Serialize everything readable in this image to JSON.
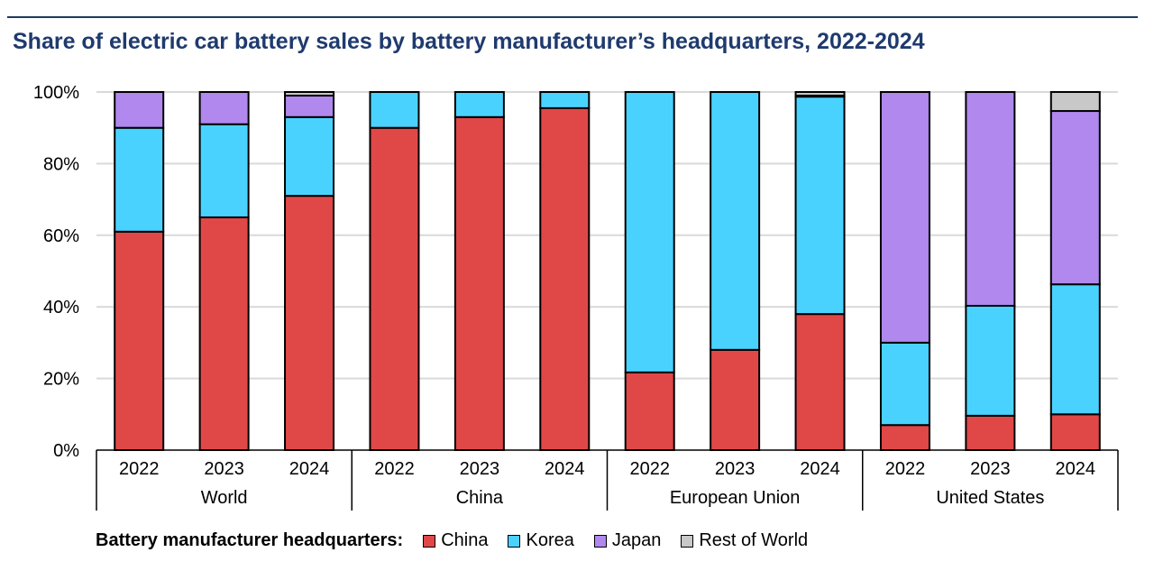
{
  "title": "Share of electric car battery sales by battery manufacturer’s headquarters, 2022-2024",
  "chart_data": {
    "type": "bar",
    "stacked": true,
    "title": "Share of electric car battery sales by battery manufacturer’s headquarters, 2022-2024",
    "groups": [
      "World",
      "China",
      "European Union",
      "United States"
    ],
    "categories": [
      "2022",
      "2023",
      "2024",
      "2022",
      "2023",
      "2024",
      "2022",
      "2023",
      "2024",
      "2022",
      "2023",
      "2024"
    ],
    "yticks": [
      "0%",
      "20%",
      "40%",
      "60%",
      "80%",
      "100%"
    ],
    "ylim": [
      0,
      100
    ],
    "grid": true,
    "legend_title": "Battery manufacturer headquarters:",
    "legend_position": "bottom",
    "series": [
      {
        "name": "China",
        "color": "#e04848",
        "values": [
          61,
          65,
          71,
          90,
          93,
          95.5,
          21.7,
          28,
          38,
          7,
          9.6,
          10
        ]
      },
      {
        "name": "Korea",
        "color": "#4ad2ff",
        "values": [
          29,
          26,
          22,
          10,
          7,
          4.5,
          78.3,
          72,
          60.7,
          23,
          30.7,
          36.3
        ]
      },
      {
        "name": "Japan",
        "color": "#b088ee",
        "values": [
          10,
          9,
          6,
          0,
          0,
          0,
          0,
          0,
          0.3,
          70,
          59.7,
          48.4
        ]
      },
      {
        "name": "Rest of World",
        "color": "#c8c8c8",
        "values": [
          0,
          0,
          1,
          0,
          0,
          0,
          0,
          0,
          1,
          0,
          0,
          5.3
        ]
      }
    ]
  }
}
